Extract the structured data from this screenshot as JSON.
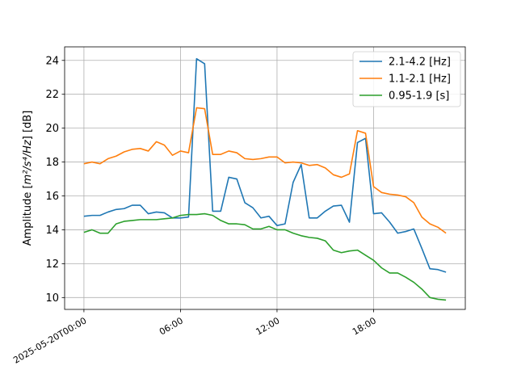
{
  "chart_data": {
    "type": "line",
    "title": "",
    "xlabel": "",
    "ylabel_prefix": "Amplitude [",
    "ylabel_math": "m²/s⁴/Hz",
    "ylabel_suffix": "] [dB]",
    "x_unit": "hours since 2025-05-20T00:00",
    "xlim": [
      -1.2,
      23.7
    ],
    "ylim": [
      9.3,
      24.8
    ],
    "grid": true,
    "legend_position": "top-right",
    "x_ticks": [
      {
        "x": 0,
        "label": "2025-05-20T00:00"
      },
      {
        "x": 6,
        "label": "06:00"
      },
      {
        "x": 12,
        "label": "12:00"
      },
      {
        "x": 18,
        "label": "18:00"
      }
    ],
    "y_ticks": [
      10,
      12,
      14,
      16,
      18,
      20,
      22,
      24
    ],
    "x": [
      0,
      0.5,
      1,
      1.5,
      2,
      2.5,
      3,
      3.5,
      4,
      4.5,
      5,
      5.5,
      6,
      6.5,
      7,
      7.5,
      8,
      8.5,
      9,
      9.5,
      10,
      10.5,
      11,
      11.5,
      12,
      12.5,
      13,
      13.5,
      14,
      14.5,
      15,
      15.5,
      16,
      16.5,
      17,
      17.5,
      18,
      18.5,
      19,
      19.5,
      20,
      20.5,
      21,
      21.5,
      22,
      22.5
    ],
    "series": [
      {
        "name": "2.1-4.2 [Hz]",
        "color": "#1f77b4",
        "values": [
          14.8,
          14.85,
          14.85,
          15.05,
          15.2,
          15.25,
          15.45,
          15.45,
          14.95,
          15.05,
          15.0,
          14.7,
          14.7,
          14.75,
          24.1,
          23.8,
          15.1,
          15.1,
          17.1,
          17.0,
          15.6,
          15.3,
          14.7,
          14.8,
          14.25,
          14.35,
          16.8,
          17.85,
          14.7,
          14.7,
          15.1,
          15.4,
          15.45,
          14.45,
          19.15,
          19.4,
          14.95,
          15.0,
          14.45,
          13.8,
          13.9,
          14.05,
          12.9,
          11.7,
          11.65,
          11.5
        ]
      },
      {
        "name": "1.1-2.1 [Hz]",
        "color": "#ff7f0e",
        "values": [
          17.9,
          18.0,
          17.9,
          18.2,
          18.35,
          18.6,
          18.75,
          18.8,
          18.65,
          19.2,
          19.0,
          18.4,
          18.65,
          18.55,
          21.2,
          21.15,
          18.45,
          18.45,
          18.65,
          18.55,
          18.2,
          18.15,
          18.2,
          18.3,
          18.3,
          17.95,
          18.0,
          17.95,
          17.8,
          17.85,
          17.65,
          17.25,
          17.1,
          17.3,
          19.85,
          19.7,
          16.55,
          16.2,
          16.1,
          16.05,
          15.95,
          15.6,
          14.75,
          14.35,
          14.15,
          13.8
        ]
      },
      {
        "name": "0.95-1.9 [s]",
        "color": "#2ca02c",
        "values": [
          13.85,
          14.0,
          13.8,
          13.8,
          14.35,
          14.5,
          14.55,
          14.6,
          14.6,
          14.6,
          14.65,
          14.7,
          14.85,
          14.9,
          14.9,
          14.95,
          14.85,
          14.55,
          14.35,
          14.35,
          14.3,
          14.05,
          14.05,
          14.2,
          14.0,
          14.0,
          13.8,
          13.65,
          13.55,
          13.5,
          13.35,
          12.8,
          12.65,
          12.75,
          12.8,
          12.5,
          12.2,
          11.75,
          11.45,
          11.45,
          11.2,
          10.9,
          10.5,
          10.0,
          9.9,
          9.85
        ]
      }
    ]
  }
}
